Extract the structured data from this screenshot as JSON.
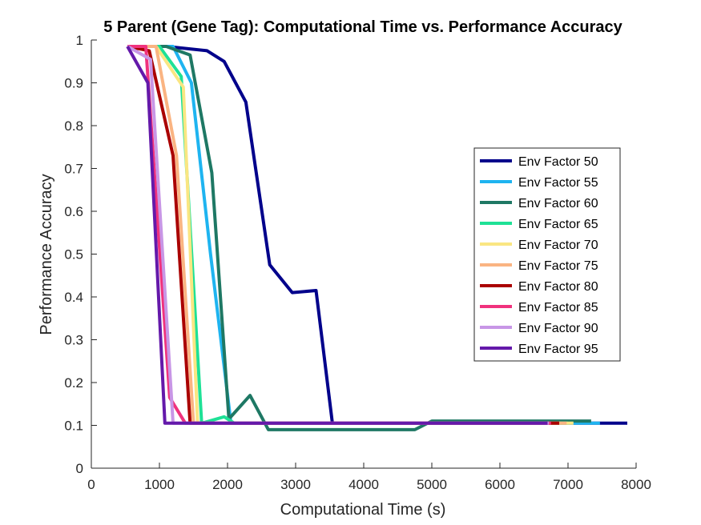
{
  "chart_data": {
    "type": "line",
    "title": "5 Parent (Gene Tag): Computational Time vs. Performance Accuracy",
    "xlabel": "Computational Time (s)",
    "ylabel": "Performance Accuracy",
    "xlim": [
      0,
      8000
    ],
    "ylim": [
      0,
      1
    ],
    "xticks": [
      0,
      1000,
      2000,
      3000,
      4000,
      5000,
      6000,
      7000,
      8000
    ],
    "xtick_labels": [
      "0",
      "1000",
      "2000",
      "3000",
      "4000",
      "5000",
      "6000",
      "7000",
      "8000"
    ],
    "yticks": [
      0,
      0.1,
      0.2,
      0.3,
      0.4,
      0.5,
      0.6,
      0.7,
      0.8,
      0.9,
      1
    ],
    "ytick_labels": [
      "0",
      "0.1",
      "0.2",
      "0.3",
      "0.4",
      "0.5",
      "0.6",
      "0.7",
      "0.8",
      "0.9",
      "1"
    ],
    "legend_position": "right",
    "series": [
      {
        "name": "Env Factor 50",
        "color": "#00008B",
        "x": [
          530,
          1100,
          1700,
          1950,
          2270,
          2620,
          2950,
          3300,
          3540,
          5000,
          7870
        ],
        "y": [
          0.985,
          0.985,
          0.975,
          0.95,
          0.855,
          0.475,
          0.41,
          0.415,
          0.105,
          0.105,
          0.105
        ]
      },
      {
        "name": "Env Factor 55",
        "color": "#1EB4F0",
        "x": [
          530,
          1200,
          1470,
          1750,
          2050,
          2500,
          5000,
          7470
        ],
        "y": [
          0.985,
          0.985,
          0.9,
          0.5,
          0.105,
          0.105,
          0.105,
          0.105
        ]
      },
      {
        "name": "Env Factor 60",
        "color": "#1E7864",
        "x": [
          530,
          1100,
          1450,
          1770,
          2020,
          2330,
          2600,
          3000,
          4750,
          5000,
          7340
        ],
        "y": [
          0.985,
          0.985,
          0.965,
          0.69,
          0.115,
          0.17,
          0.09,
          0.09,
          0.09,
          0.11,
          0.11
        ]
      },
      {
        "name": "Env Factor 65",
        "color": "#1EE196",
        "x": [
          530,
          1000,
          1320,
          1620,
          1950,
          2100,
          3000,
          7000
        ],
        "y": [
          0.985,
          0.985,
          0.915,
          0.105,
          0.12,
          0.105,
          0.105,
          0.105
        ]
      },
      {
        "name": "Env Factor 70",
        "color": "#FAE682",
        "x": [
          530,
          950,
          1350,
          1560,
          2000,
          7080
        ],
        "y": [
          0.985,
          0.985,
          0.89,
          0.105,
          0.105,
          0.105
        ]
      },
      {
        "name": "Env Factor 75",
        "color": "#FAB482",
        "x": [
          530,
          950,
          1250,
          1500,
          2000,
          6980
        ],
        "y": [
          0.985,
          0.985,
          0.73,
          0.105,
          0.105,
          0.105
        ]
      },
      {
        "name": "Env Factor 80",
        "color": "#AA0000",
        "x": [
          530,
          850,
          1200,
          1450,
          2000,
          6870
        ],
        "y": [
          0.985,
          0.975,
          0.73,
          0.105,
          0.105,
          0.105
        ]
      },
      {
        "name": "Env Factor 85",
        "color": "#F0327D",
        "x": [
          530,
          800,
          1150,
          1380,
          2000,
          6750
        ],
        "y": [
          0.985,
          0.985,
          0.165,
          0.105,
          0.105,
          0.105
        ]
      },
      {
        "name": "Env Factor 90",
        "color": "#C896E6",
        "x": [
          530,
          870,
          1200,
          1500,
          6720
        ],
        "y": [
          0.985,
          0.955,
          0.105,
          0.105,
          0.105
        ]
      },
      {
        "name": "Env Factor 95",
        "color": "#6419AA",
        "x": [
          530,
          830,
          1080,
          1500,
          6700
        ],
        "y": [
          0.985,
          0.9,
          0.105,
          0.105,
          0.105
        ]
      }
    ]
  }
}
